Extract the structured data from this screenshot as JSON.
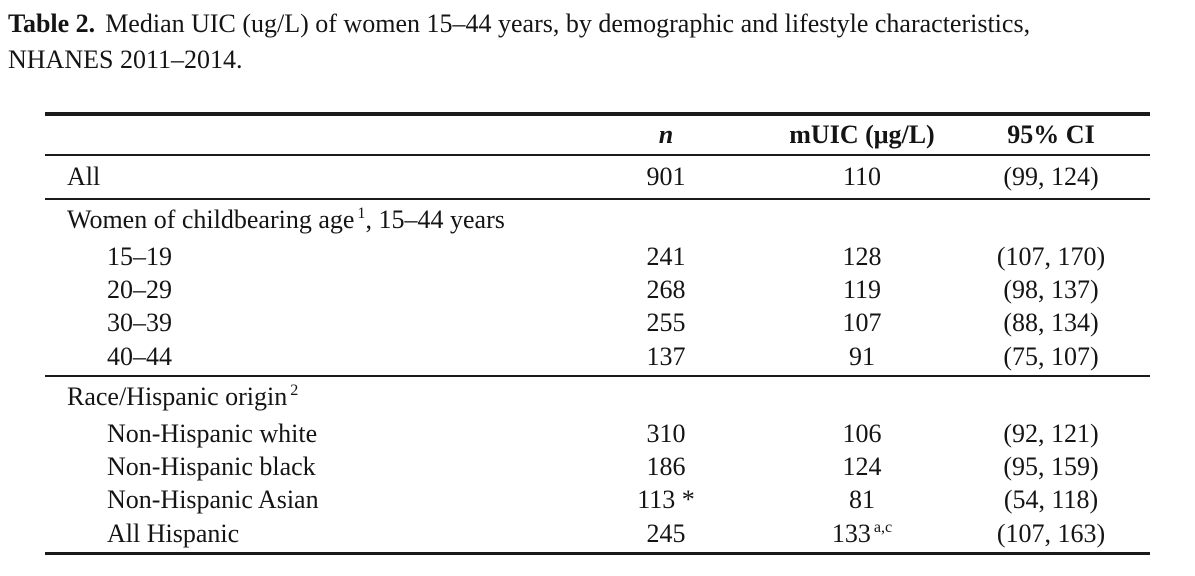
{
  "caption": {
    "label": "Table 2.",
    "line1": "Median UIC (ug/L) of women 15–44 years, by demographic and lifestyle characteristics,",
    "line2": "NHANES 2011–2014."
  },
  "table": {
    "columns": {
      "n": "n",
      "muic": "mUIC (μg/L)",
      "ci": "95% CI"
    },
    "all_row": {
      "label": "All",
      "n": "901",
      "muic": "110",
      "ci": "(99, 124)"
    },
    "age_section": {
      "header": {
        "text": "Women of childbearing age",
        "sup": "1",
        "suffix": ", 15–44 years"
      },
      "rows": [
        {
          "label": "15–19",
          "n": "241",
          "muic": "128",
          "ci": "(107, 170)"
        },
        {
          "label": "20–29",
          "n": "268",
          "muic": "119",
          "ci": "(98, 137)"
        },
        {
          "label": "30–39",
          "n": "255",
          "muic": "107",
          "ci": "(88, 134)"
        },
        {
          "label": "40–44",
          "n": "137",
          "muic": "91",
          "ci": "(75, 107)"
        }
      ]
    },
    "race_section": {
      "header": {
        "text": "Race/Hispanic origin",
        "sup": "2"
      },
      "rows": [
        {
          "label": "Non-Hispanic white",
          "n": "310",
          "muic": "106",
          "ci": "(92, 121)"
        },
        {
          "label": "Non-Hispanic black",
          "n": "186",
          "muic": "124",
          "ci": "(95, 159)"
        },
        {
          "label": "Non-Hispanic Asian",
          "n": "113 *",
          "muic": "81",
          "ci": "(54, 118)"
        },
        {
          "label": "All Hispanic",
          "n": "245",
          "muic": "133",
          "muic_sup": "a,c",
          "ci": "(107, 163)"
        }
      ]
    }
  }
}
